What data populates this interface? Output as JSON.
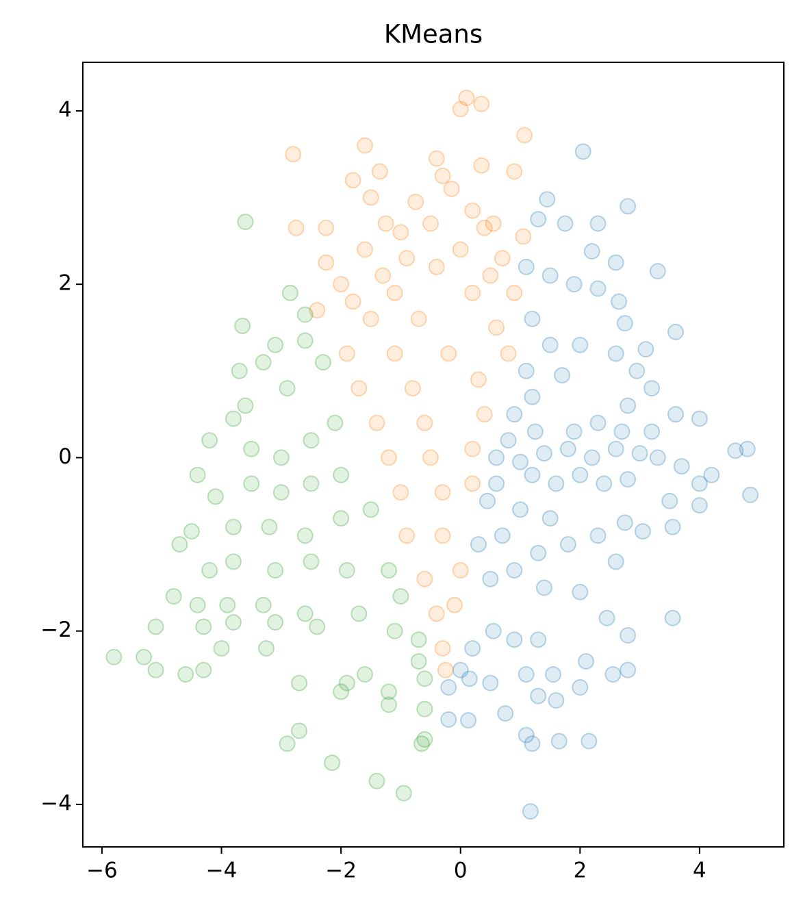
{
  "chart_data": {
    "type": "scatter",
    "title": "KMeans",
    "xlim": [
      -6.32,
      5.41
    ],
    "ylim": [
      -4.49,
      4.56
    ],
    "xticks": [
      {
        "value": -6,
        "label": "−6"
      },
      {
        "value": -4,
        "label": "−4"
      },
      {
        "value": -2,
        "label": "−2"
      },
      0,
      2,
      4
    ],
    "yticks": [
      {
        "value": -4,
        "label": "−4"
      },
      {
        "value": -2,
        "label": "−2"
      },
      0,
      2,
      4
    ],
    "grid": false,
    "series": [
      {
        "color": "#1f77b4",
        "x": [
          2.05,
          1.45,
          2.8,
          1.3,
          1.75,
          2.3,
          2.2,
          2.6,
          3.3,
          1.1,
          1.5,
          1.9,
          2.3,
          2.65,
          3.6,
          2.75,
          1.2,
          2.0,
          2.6,
          3.1,
          2.95,
          1.7,
          3.2,
          2.8,
          3.6,
          4.0,
          4.6,
          4.8,
          4.85,
          4.2,
          4.0,
          3.7,
          3.3,
          3.0,
          2.6,
          2.2,
          1.8,
          1.4,
          1.0,
          0.6,
          0.8,
          1.2,
          1.6,
          2.0,
          2.4,
          2.8,
          3.5,
          4.0,
          3.55,
          2.75,
          3.05,
          2.3,
          1.8,
          1.3,
          0.7,
          0.5,
          0.9,
          1.4,
          2.0,
          2.6,
          3.55,
          2.45,
          2.8,
          1.3,
          0.9,
          0.55,
          0.2,
          0.0,
          -0.2,
          0.15,
          0.5,
          1.1,
          1.55,
          2.1,
          2.55,
          2.8,
          0.75,
          1.3,
          1.6,
          2.0,
          -0.2,
          0.13,
          1.1,
          1.2,
          1.65,
          2.15,
          1.17,
          0.6,
          0.9,
          1.2,
          1.1,
          1.5,
          1.25,
          1.9,
          2.3,
          2.7,
          3.2,
          1.0,
          1.5,
          0.45,
          0.3
        ],
        "y": [
          3.53,
          2.98,
          2.9,
          2.75,
          2.7,
          2.7,
          2.38,
          2.25,
          2.15,
          2.2,
          2.1,
          2.0,
          1.95,
          1.8,
          1.45,
          1.55,
          1.6,
          1.3,
          1.2,
          1.25,
          1.0,
          0.95,
          0.8,
          0.6,
          0.5,
          0.45,
          0.08,
          0.1,
          -0.43,
          -0.2,
          -0.3,
          -0.1,
          0.0,
          0.05,
          0.1,
          0.0,
          0.1,
          0.05,
          -0.05,
          0.0,
          0.2,
          -0.2,
          -0.3,
          -0.2,
          -0.3,
          -0.25,
          -0.5,
          -0.55,
          -0.8,
          -0.75,
          -0.85,
          -0.9,
          -1.0,
          -1.1,
          -0.9,
          -1.4,
          -1.3,
          -1.5,
          -1.55,
          -1.2,
          -1.85,
          -1.85,
          -2.05,
          -2.1,
          -2.1,
          -2.0,
          -2.2,
          -2.45,
          -2.65,
          -2.55,
          -2.6,
          -2.5,
          -2.5,
          -2.35,
          -2.5,
          -2.45,
          -2.95,
          -2.75,
          -2.8,
          -2.65,
          -3.02,
          -3.03,
          -3.2,
          -3.3,
          -3.27,
          -3.27,
          -4.08,
          -0.3,
          0.5,
          0.7,
          1.0,
          1.3,
          0.3,
          0.3,
          0.4,
          0.3,
          0.3,
          -0.6,
          -0.7,
          -0.5,
          -1.0
        ]
      },
      {
        "color": "#ff7f0e",
        "x": [
          0.1,
          0.35,
          0.0,
          1.07,
          -1.6,
          -2.8,
          -0.4,
          0.35,
          -1.35,
          0.9,
          -0.3,
          -1.8,
          -1.5,
          -0.15,
          -0.75,
          0.2,
          -2.75,
          -2.25,
          -1.25,
          -0.5,
          0.4,
          1.05,
          -1.6,
          -0.9,
          0.0,
          0.7,
          -2.25,
          -1.3,
          -0.4,
          0.5,
          -2.0,
          -1.1,
          0.2,
          0.9,
          -2.4,
          -1.5,
          -0.7,
          0.6,
          -1.9,
          -1.1,
          -0.2,
          0.8,
          -1.7,
          -0.8,
          0.3,
          -1.4,
          -0.6,
          0.4,
          -1.2,
          -0.5,
          0.2,
          -1.0,
          -0.3,
          0.2,
          -0.9,
          -0.3,
          -0.6,
          0.0,
          -0.4,
          -0.1,
          -0.3,
          -0.25,
          -1.8,
          -1.0,
          0.55
        ],
        "y": [
          4.15,
          4.08,
          4.02,
          3.72,
          3.6,
          3.5,
          3.45,
          3.37,
          3.3,
          3.3,
          3.25,
          3.2,
          3.0,
          3.1,
          2.95,
          2.85,
          2.65,
          2.65,
          2.7,
          2.7,
          2.65,
          2.55,
          2.4,
          2.3,
          2.4,
          2.3,
          2.25,
          2.1,
          2.2,
          2.1,
          2.0,
          1.9,
          1.9,
          1.9,
          1.7,
          1.6,
          1.6,
          1.5,
          1.2,
          1.2,
          1.2,
          1.2,
          0.8,
          0.8,
          0.9,
          0.4,
          0.4,
          0.5,
          0.0,
          0.0,
          0.1,
          -0.4,
          -0.4,
          -0.3,
          -0.9,
          -0.9,
          -1.4,
          -1.3,
          -1.8,
          -1.7,
          -2.2,
          -2.45,
          1.8,
          2.6,
          2.7
        ]
      },
      {
        "color": "#2ca02c",
        "x": [
          -3.6,
          -2.85,
          -2.6,
          -3.65,
          -3.1,
          -2.6,
          -2.3,
          -3.7,
          -3.3,
          -2.9,
          -3.6,
          -3.8,
          -4.2,
          -3.5,
          -3.0,
          -2.5,
          -2.1,
          -2.0,
          -2.5,
          -3.0,
          -3.5,
          -4.1,
          -4.4,
          -3.8,
          -3.2,
          -2.6,
          -2.0,
          -1.5,
          -4.5,
          -4.7,
          -4.2,
          -3.8,
          -3.1,
          -2.5,
          -1.9,
          -1.2,
          -4.8,
          -4.4,
          -3.9,
          -3.3,
          -2.6,
          -1.7,
          -1.0,
          -5.1,
          -4.3,
          -3.8,
          -3.1,
          -2.4,
          -1.1,
          -0.7,
          -5.8,
          -5.3,
          -4.0,
          -3.25,
          -0.7,
          -5.1,
          -4.6,
          -4.3,
          -2.7,
          -1.9,
          -1.6,
          -0.6,
          -2.0,
          -1.2,
          -1.2,
          -0.6,
          -2.9,
          -2.7,
          -0.6,
          -0.65,
          -2.15,
          -1.4,
          -0.95
        ],
        "y": [
          2.72,
          1.9,
          1.65,
          1.52,
          1.3,
          1.35,
          1.1,
          1.0,
          1.1,
          0.8,
          0.6,
          0.45,
          0.2,
          0.1,
          0.0,
          0.2,
          0.4,
          -0.2,
          -0.3,
          -0.4,
          -0.3,
          -0.45,
          -0.2,
          -0.8,
          -0.8,
          -0.9,
          -0.7,
          -0.6,
          -0.85,
          -1.0,
          -1.3,
          -1.2,
          -1.3,
          -1.2,
          -1.3,
          -1.3,
          -1.6,
          -1.7,
          -1.7,
          -1.7,
          -1.8,
          -1.8,
          -1.6,
          -1.95,
          -1.95,
          -1.9,
          -1.9,
          -1.95,
          -2.0,
          -2.1,
          -2.3,
          -2.3,
          -2.2,
          -2.2,
          -2.35,
          -2.45,
          -2.5,
          -2.45,
          -2.6,
          -2.6,
          -2.5,
          -2.55,
          -2.7,
          -2.7,
          -2.85,
          -2.9,
          -3.3,
          -3.15,
          -3.25,
          -3.3,
          -3.52,
          -3.73,
          -3.87
        ]
      }
    ]
  }
}
